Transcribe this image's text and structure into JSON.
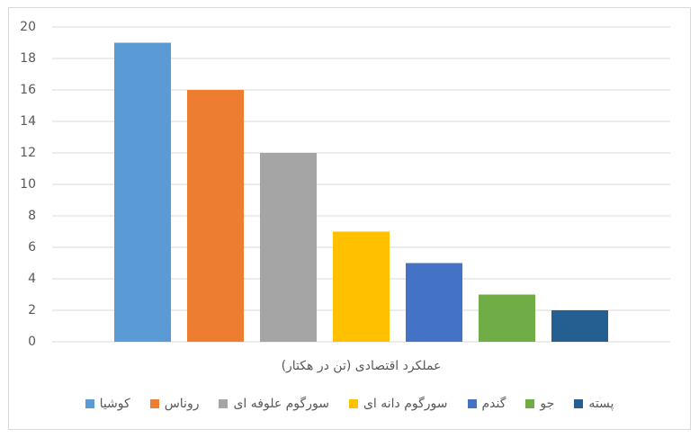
{
  "chart_data": {
    "type": "bar",
    "categories": [
      "عملکرد اقتصادی (تن در هکتار)"
    ],
    "series": [
      {
        "name": "کوشیا",
        "color": "#5b9bd5",
        "values": [
          19
        ]
      },
      {
        "name": "روناس",
        "color": "#ed7d31",
        "values": [
          16
        ]
      },
      {
        "name": "سورگوم علوفه ای",
        "color": "#a5a5a5",
        "values": [
          12
        ]
      },
      {
        "name": "سورگوم دانه ای",
        "color": "#ffc000",
        "values": [
          7
        ]
      },
      {
        "name": "گندم",
        "color": "#4472c4",
        "values": [
          5
        ]
      },
      {
        "name": "جو",
        "color": "#70ad47",
        "values": [
          3
        ]
      },
      {
        "name": "پسته",
        "color": "#255e91",
        "values": [
          2
        ]
      }
    ],
    "ylim": [
      0,
      20
    ],
    "yticks": [
      0,
      2,
      4,
      6,
      8,
      10,
      12,
      14,
      16,
      18,
      20
    ],
    "grid": true,
    "legend": "bottom"
  }
}
